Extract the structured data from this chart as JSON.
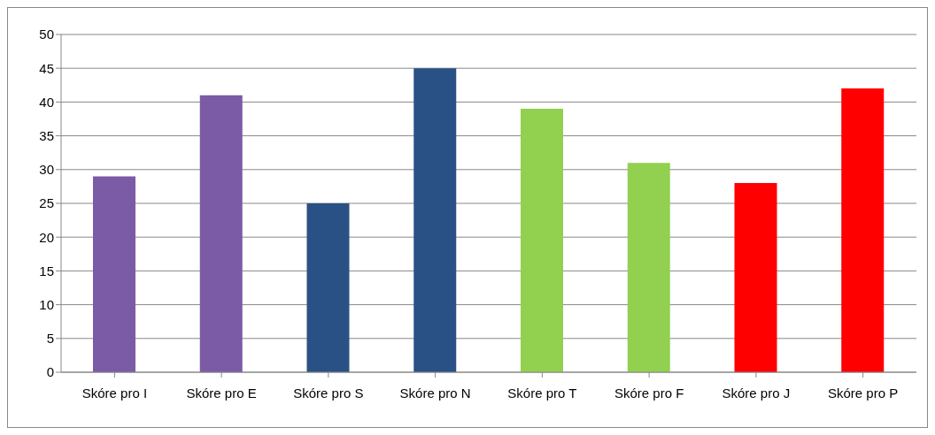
{
  "chart_data": {
    "type": "bar",
    "categories": [
      "Skóre pro I",
      "Skóre pro E",
      "Skóre pro S",
      "Skóre pro N",
      "Skóre pro T",
      "Skóre pro F",
      "Skóre pro J",
      "Skóre pro P"
    ],
    "values": [
      29,
      41,
      25,
      45,
      39,
      31,
      28,
      42
    ],
    "colors": [
      "#7b5aa6",
      "#7b5aa6",
      "#2a5186",
      "#2a5186",
      "#92d050",
      "#92d050",
      "#ff0000",
      "#ff0000"
    ],
    "ylim": [
      0,
      50
    ],
    "yticks": [
      0,
      5,
      10,
      15,
      20,
      25,
      30,
      35,
      40,
      45,
      50
    ],
    "grid": "y"
  }
}
